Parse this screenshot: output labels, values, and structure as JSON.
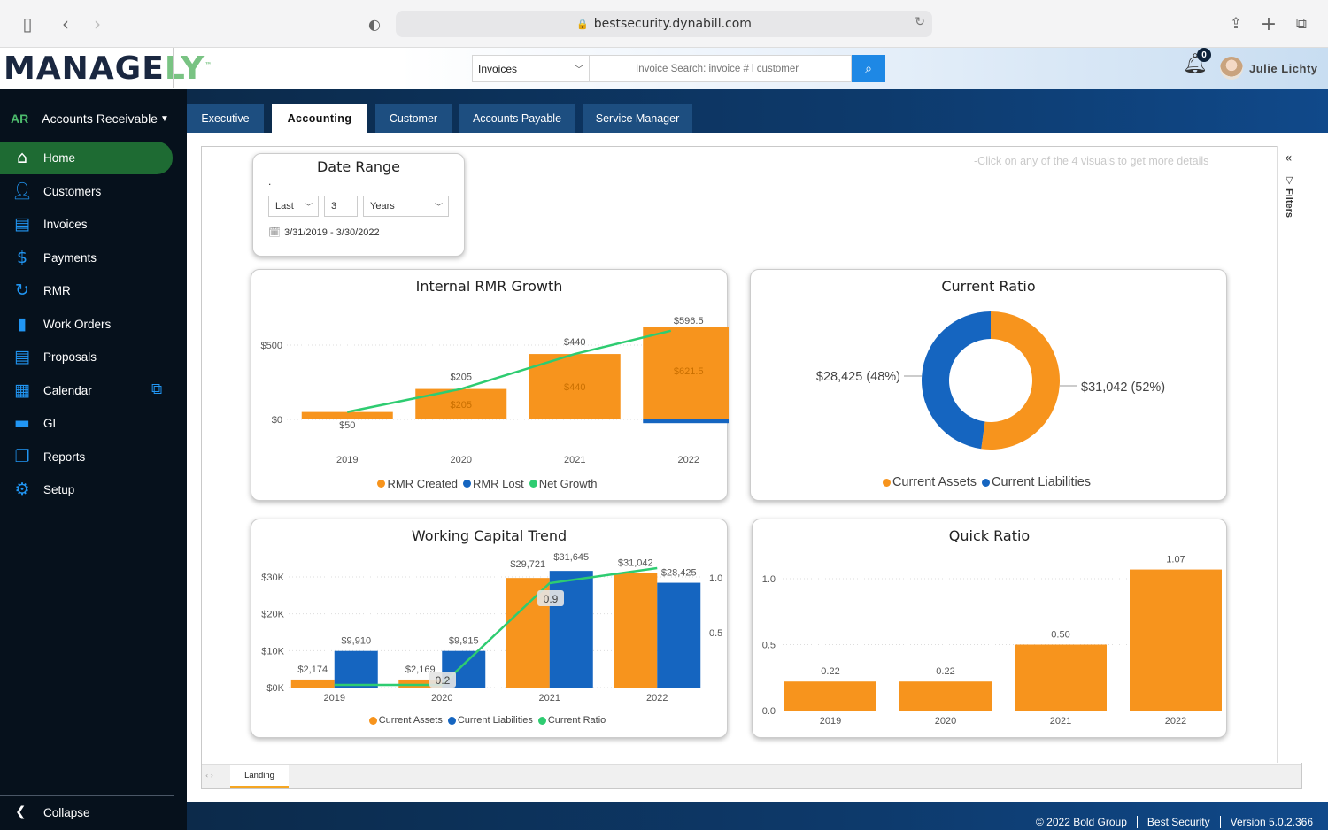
{
  "browser": {
    "url": "bestsecurity.dynabill.com"
  },
  "header": {
    "logo_main": "MANAGE",
    "logo_accent": "LY",
    "logo_tm": "™",
    "search_type": "Invoices",
    "search_placeholder": "Invoice Search: invoice # l customer",
    "notification_count": "0",
    "user_name": "Julie Lichty"
  },
  "sidebar": {
    "module_code": "AR",
    "module_name": "Accounts Receivable",
    "items": [
      {
        "label": "Home",
        "icon": "home-icon"
      },
      {
        "label": "Customers",
        "icon": "user-icon"
      },
      {
        "label": "Invoices",
        "icon": "invoice-icon"
      },
      {
        "label": "Payments",
        "icon": "dollar-icon"
      },
      {
        "label": "RMR",
        "icon": "refresh-icon"
      },
      {
        "label": "Work Orders",
        "icon": "clipboard-icon"
      },
      {
        "label": "Proposals",
        "icon": "document-icon"
      },
      {
        "label": "Calendar",
        "icon": "calendar-icon"
      },
      {
        "label": "GL",
        "icon": "folder-icon"
      },
      {
        "label": "Reports",
        "icon": "copy-icon"
      },
      {
        "label": "Setup",
        "icon": "gear-icon"
      }
    ],
    "collapse_label": "Collapse"
  },
  "tabs": [
    {
      "label": "Executive"
    },
    {
      "label": "Accounting"
    },
    {
      "label": "Customer"
    },
    {
      "label": "Accounts Payable"
    },
    {
      "label": "Service Manager"
    }
  ],
  "report": {
    "hint": "-Click on any of the 4 visuals to get more details",
    "filters_label": "Filters",
    "page_tab": "Landing",
    "date_range": {
      "title": "Date Range",
      "dot": ".",
      "period": "Last",
      "count": "3",
      "unit": "Years",
      "range": "3/31/2019 - 3/30/2022"
    }
  },
  "footer": {
    "copyright": "© 2022 Bold Group",
    "company": "Best Security",
    "version": "Version 5.0.2.366"
  },
  "chart_data": [
    {
      "type": "bar",
      "title": "Internal RMR Growth",
      "categories": [
        "2019",
        "2020",
        "2021",
        "2022"
      ],
      "y_ticks": [
        "$0",
        "$500"
      ],
      "series": [
        {
          "name": "RMR Created",
          "color": "#f7941d",
          "values": [
            50,
            205,
            440,
            621.5
          ],
          "labels": [
            "$50",
            "$205",
            "$440",
            "$621.5"
          ]
        },
        {
          "name": "RMR Lost",
          "color": "#1565c0",
          "values": [
            0,
            0,
            0,
            -25
          ],
          "labels": []
        },
        {
          "name": "Net Growth",
          "color": "#2ecc71",
          "values": [
            50,
            205,
            440,
            596.5
          ],
          "labels": [
            "$50",
            "$205",
            "$440",
            "$596.5"
          ]
        }
      ]
    },
    {
      "type": "pie",
      "title": "Current Ratio",
      "slices": [
        {
          "name": "Current Assets",
          "value": 31042,
          "label": "$31,042 (52%)",
          "color": "#f7941d"
        },
        {
          "name": "Current Liabilities",
          "value": 28425,
          "label": "$28,425 (48%)",
          "color": "#1565c0"
        }
      ]
    },
    {
      "type": "bar",
      "title": "Working Capital Trend",
      "categories": [
        "2019",
        "2020",
        "2021",
        "2022"
      ],
      "y_ticks": [
        "$0K",
        "$10K",
        "$20K",
        "$30K"
      ],
      "y2_ticks": [
        "0.5",
        "1.0"
      ],
      "series": [
        {
          "name": "Current Assets",
          "color": "#f7941d",
          "values": [
            2174,
            2169,
            29721,
            31042
          ],
          "labels": [
            "$2,174",
            "$2,169",
            "$29,721",
            "$31,042"
          ]
        },
        {
          "name": "Current Liabilities",
          "color": "#1565c0",
          "values": [
            9910,
            9915,
            31645,
            28425
          ],
          "labels": [
            "$9,910",
            "$9,915",
            "$31,645",
            "$28,425"
          ]
        },
        {
          "name": "Current Ratio",
          "color": "#2ecc71",
          "values": [
            0.22,
            0.22,
            0.94,
            1.09
          ],
          "labels": [
            "",
            "0.2",
            "0.9",
            ""
          ]
        }
      ]
    },
    {
      "type": "bar",
      "title": "Quick Ratio",
      "categories": [
        "2019",
        "2020",
        "2021",
        "2022"
      ],
      "y_ticks": [
        "0.0",
        "0.5",
        "1.0"
      ],
      "series": [
        {
          "name": "Quick Ratio",
          "color": "#f7941d",
          "values": [
            0.22,
            0.22,
            0.5,
            1.07
          ],
          "labels": [
            "0.22",
            "0.22",
            "0.50",
            "1.07"
          ]
        }
      ]
    }
  ]
}
